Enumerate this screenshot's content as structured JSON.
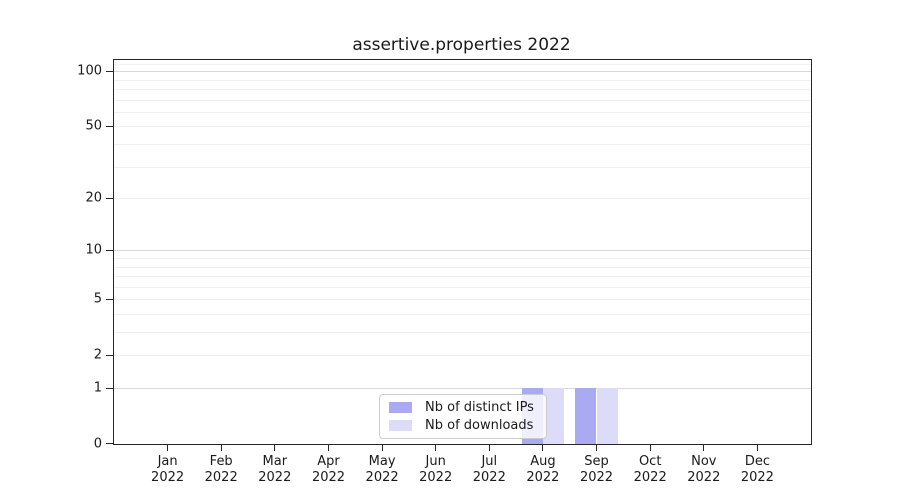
{
  "chart_data": {
    "type": "bar",
    "title": "assertive.properties 2022",
    "x": {
      "categories": [
        "Jan",
        "Feb",
        "Mar",
        "Apr",
        "May",
        "Jun",
        "Jul",
        "Aug",
        "Sep",
        "Oct",
        "Nov",
        "Dec"
      ],
      "year": "2022"
    },
    "series": [
      {
        "name": "Nb of distinct IPs",
        "color": "#aaaaf2",
        "values": [
          0,
          0,
          0,
          0,
          0,
          0,
          0,
          1,
          1,
          0,
          0,
          0
        ]
      },
      {
        "name": "Nb of downloads",
        "color": "#dcdcf9",
        "values": [
          0,
          0,
          0,
          0,
          0,
          0,
          0,
          1,
          1,
          0,
          0,
          0
        ]
      }
    ],
    "y_axis": {
      "scale": "log1p",
      "min": 0,
      "max": 115,
      "ticks": [
        0,
        1,
        2,
        5,
        10,
        20,
        50,
        100
      ],
      "major_gridlines": [
        1,
        10,
        100
      ],
      "minor_gridlines": [
        2,
        3,
        4,
        5,
        6,
        7,
        8,
        9,
        20,
        30,
        40,
        50,
        60,
        70,
        80,
        90,
        110
      ]
    },
    "legend": {
      "position": "lower center",
      "entries": [
        "Nb of distinct IPs",
        "Nb of downloads"
      ]
    },
    "grid": true,
    "colors": {
      "major_grid": "#d8d8d8",
      "minor_grid": "#f0f0f0",
      "spine": "#262626",
      "text": "#1a1a1a",
      "legend_border": "#cccccc"
    }
  }
}
